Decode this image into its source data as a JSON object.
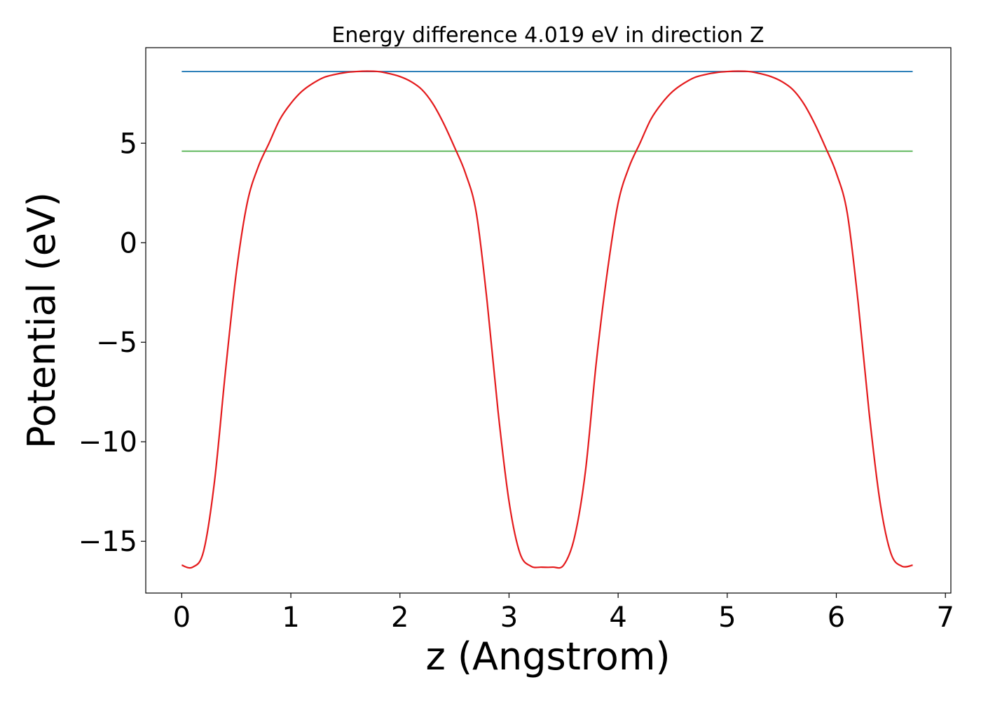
{
  "chart_data": {
    "type": "line",
    "title": "Energy difference 4.019 eV in direction Z",
    "xlabel": "z (Angstrom)",
    "ylabel": "Potential (eV)",
    "xlim": [
      -0.33,
      7.05
    ],
    "ylim": [
      -17.6,
      9.8
    ],
    "xticks": [
      0,
      1,
      2,
      3,
      4,
      5,
      6,
      7
    ],
    "yticks": [
      -15,
      -10,
      -5,
      0,
      5
    ],
    "grid": false,
    "legend": "none",
    "series": [
      {
        "color": "#e41a1c",
        "x": [
          0.0,
          0.1,
          0.2,
          0.3,
          0.4,
          0.5,
          0.6,
          0.7,
          0.8,
          0.9,
          1.0,
          1.1,
          1.2,
          1.3,
          1.4,
          1.5,
          1.6,
          1.7,
          1.8,
          1.9,
          2.0,
          2.1,
          2.2,
          2.3,
          2.4,
          2.5,
          2.6,
          2.7,
          2.8,
          2.9,
          3.0,
          3.1,
          3.2,
          3.3,
          3.4,
          3.5,
          3.6,
          3.7,
          3.8,
          3.9,
          4.0,
          4.1,
          4.2,
          4.3,
          4.4,
          4.5,
          4.6,
          4.7,
          4.8,
          4.9,
          5.0,
          5.1,
          5.2,
          5.3,
          5.4,
          5.5,
          5.6,
          5.7,
          5.8,
          5.9,
          6.0,
          6.1,
          6.2,
          6.3,
          6.4,
          6.5,
          6.6,
          6.7
        ],
        "y": [
          -16.2,
          -16.3,
          -15.5,
          -12.0,
          -6.5,
          -1.5,
          2.0,
          3.8,
          5.0,
          6.2,
          7.0,
          7.6,
          8.0,
          8.3,
          8.45,
          8.55,
          8.6,
          8.62,
          8.6,
          8.5,
          8.35,
          8.1,
          7.7,
          7.0,
          6.0,
          4.8,
          3.5,
          1.5,
          -3.0,
          -8.5,
          -13.0,
          -15.6,
          -16.25,
          -16.3,
          -16.3,
          -16.2,
          -14.8,
          -11.5,
          -6.0,
          -1.5,
          2.0,
          3.8,
          5.0,
          6.2,
          7.0,
          7.6,
          8.0,
          8.3,
          8.45,
          8.55,
          8.6,
          8.62,
          8.6,
          8.5,
          8.35,
          8.1,
          7.7,
          7.0,
          6.0,
          4.8,
          3.5,
          1.5,
          -3.0,
          -8.5,
          -13.0,
          -15.6,
          -16.25,
          -16.2
        ]
      },
      {
        "color": "#1f77b4",
        "x": [
          0.0,
          6.7
        ],
        "y": [
          8.6,
          8.6
        ]
      },
      {
        "color": "#4daf4a",
        "x": [
          0.0,
          6.7
        ],
        "y": [
          4.6,
          4.6
        ]
      }
    ]
  }
}
